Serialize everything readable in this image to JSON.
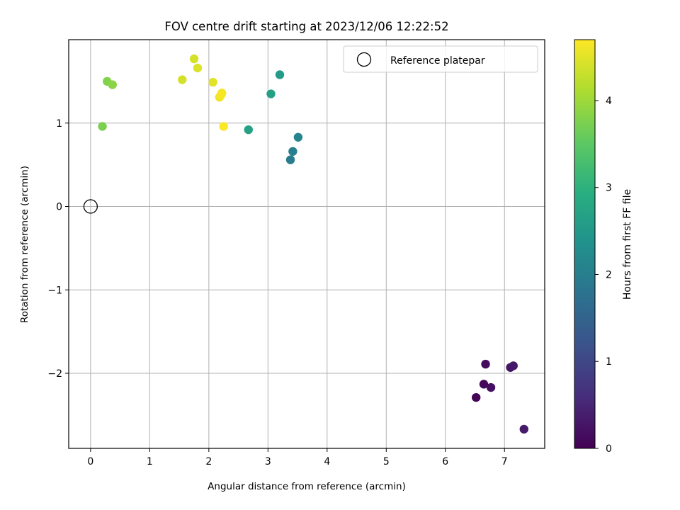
{
  "chart_data": {
    "type": "scatter",
    "title": "FOV centre drift starting at 2023/12/06 12:22:52",
    "xlabel": "Angular distance from reference (arcmin)",
    "ylabel": "Rotation from reference (arcmin)",
    "xlim": [
      -0.37,
      7.68
    ],
    "ylim": [
      -2.9,
      2.0
    ],
    "xticks": [
      0,
      1,
      2,
      3,
      4,
      5,
      6,
      7
    ],
    "xtick_labels": [
      "0",
      "1",
      "2",
      "3",
      "4",
      "5",
      "6",
      "7"
    ],
    "yticks": [
      -2,
      -1,
      0,
      1
    ],
    "ytick_labels": [
      "−2",
      "−1",
      "0",
      "1"
    ],
    "grid": true,
    "legend": {
      "position": "top-right",
      "entries": [
        "Reference platepar"
      ]
    },
    "reference_point": {
      "x": 0,
      "y": 0,
      "label": "Reference platepar"
    },
    "colorbar": {
      "label": "Hours from first FF file",
      "range": [
        0,
        4.7
      ],
      "ticks": [
        0,
        1,
        2,
        3,
        4
      ],
      "tick_labels": [
        "0",
        "1",
        "2",
        "3",
        "4"
      ],
      "colormap": "viridis"
    },
    "points": [
      {
        "x": 6.52,
        "y": -2.29,
        "c": 0.05
      },
      {
        "x": 6.65,
        "y": -2.13,
        "c": 0.1
      },
      {
        "x": 6.68,
        "y": -1.89,
        "c": 0.15
      },
      {
        "x": 6.77,
        "y": -2.17,
        "c": 0.2
      },
      {
        "x": 7.1,
        "y": -1.93,
        "c": 0.25
      },
      {
        "x": 7.15,
        "y": -1.91,
        "c": 0.3
      },
      {
        "x": 7.33,
        "y": -2.67,
        "c": 0.35
      },
      {
        "x": 3.38,
        "y": 0.56,
        "c": 1.95
      },
      {
        "x": 3.42,
        "y": 0.66,
        "c": 2.0
      },
      {
        "x": 3.51,
        "y": 0.83,
        "c": 2.1
      },
      {
        "x": 3.2,
        "y": 1.58,
        "c": 2.55
      },
      {
        "x": 3.05,
        "y": 1.35,
        "c": 2.65
      },
      {
        "x": 2.67,
        "y": 0.92,
        "c": 2.7
      },
      {
        "x": 0.2,
        "y": 0.96,
        "c": 3.75
      },
      {
        "x": 0.28,
        "y": 1.5,
        "c": 3.8
      },
      {
        "x": 0.37,
        "y": 1.46,
        "c": 3.85
      },
      {
        "x": 1.55,
        "y": 1.52,
        "c": 4.4
      },
      {
        "x": 1.75,
        "y": 1.77,
        "c": 4.4
      },
      {
        "x": 1.81,
        "y": 1.66,
        "c": 4.45
      },
      {
        "x": 2.07,
        "y": 1.49,
        "c": 4.5
      },
      {
        "x": 2.18,
        "y": 1.31,
        "c": 4.6
      },
      {
        "x": 2.22,
        "y": 1.36,
        "c": 4.62
      },
      {
        "x": 2.21,
        "y": 1.34,
        "c": 4.65
      },
      {
        "x": 2.25,
        "y": 0.96,
        "c": 4.68
      }
    ]
  }
}
